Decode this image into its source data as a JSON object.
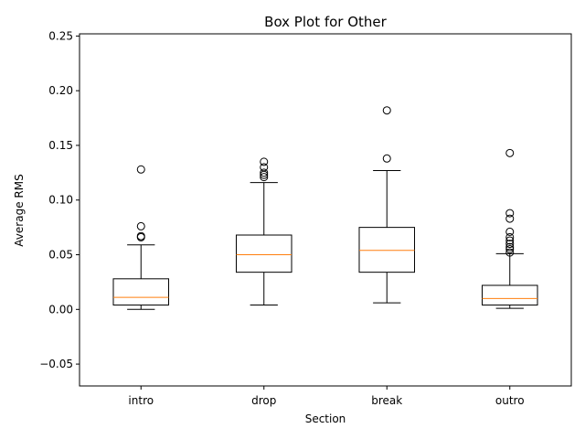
{
  "chart_data": {
    "type": "box",
    "title": "Box Plot for Other",
    "xlabel": "Section",
    "ylabel": "Average RMS",
    "categories": [
      "intro",
      "drop",
      "break",
      "outro"
    ],
    "ylim": [
      -0.07,
      0.252
    ],
    "yticks": [
      -0.05,
      0.0,
      0.05,
      0.1,
      0.15,
      0.2,
      0.25
    ],
    "ytick_labels": [
      "−0.05",
      "0.00",
      "0.05",
      "0.10",
      "0.15",
      "0.20",
      "0.25"
    ],
    "grid": false,
    "median_color": "#ff7f0e",
    "box_color": "#000000",
    "boxes": [
      {
        "category": "intro",
        "whisker_low": 0.0,
        "q1": 0.004,
        "median": 0.011,
        "q3": 0.028,
        "whisker_high": 0.059,
        "outliers": [
          0.066,
          0.067,
          0.076,
          0.128
        ]
      },
      {
        "category": "drop",
        "whisker_low": 0.004,
        "q1": 0.034,
        "median": 0.05,
        "q3": 0.068,
        "whisker_high": 0.116,
        "outliers": [
          0.121,
          0.123,
          0.125,
          0.13,
          0.135
        ]
      },
      {
        "category": "break",
        "whisker_low": 0.006,
        "q1": 0.034,
        "median": 0.054,
        "q3": 0.075,
        "whisker_high": 0.127,
        "outliers": [
          0.138,
          0.182
        ]
      },
      {
        "category": "outro",
        "whisker_low": 0.001,
        "q1": 0.004,
        "median": 0.01,
        "q3": 0.022,
        "whisker_high": 0.051,
        "outliers": [
          0.052,
          0.055,
          0.057,
          0.06,
          0.063,
          0.066,
          0.071,
          0.083,
          0.088,
          0.143
        ]
      }
    ]
  }
}
